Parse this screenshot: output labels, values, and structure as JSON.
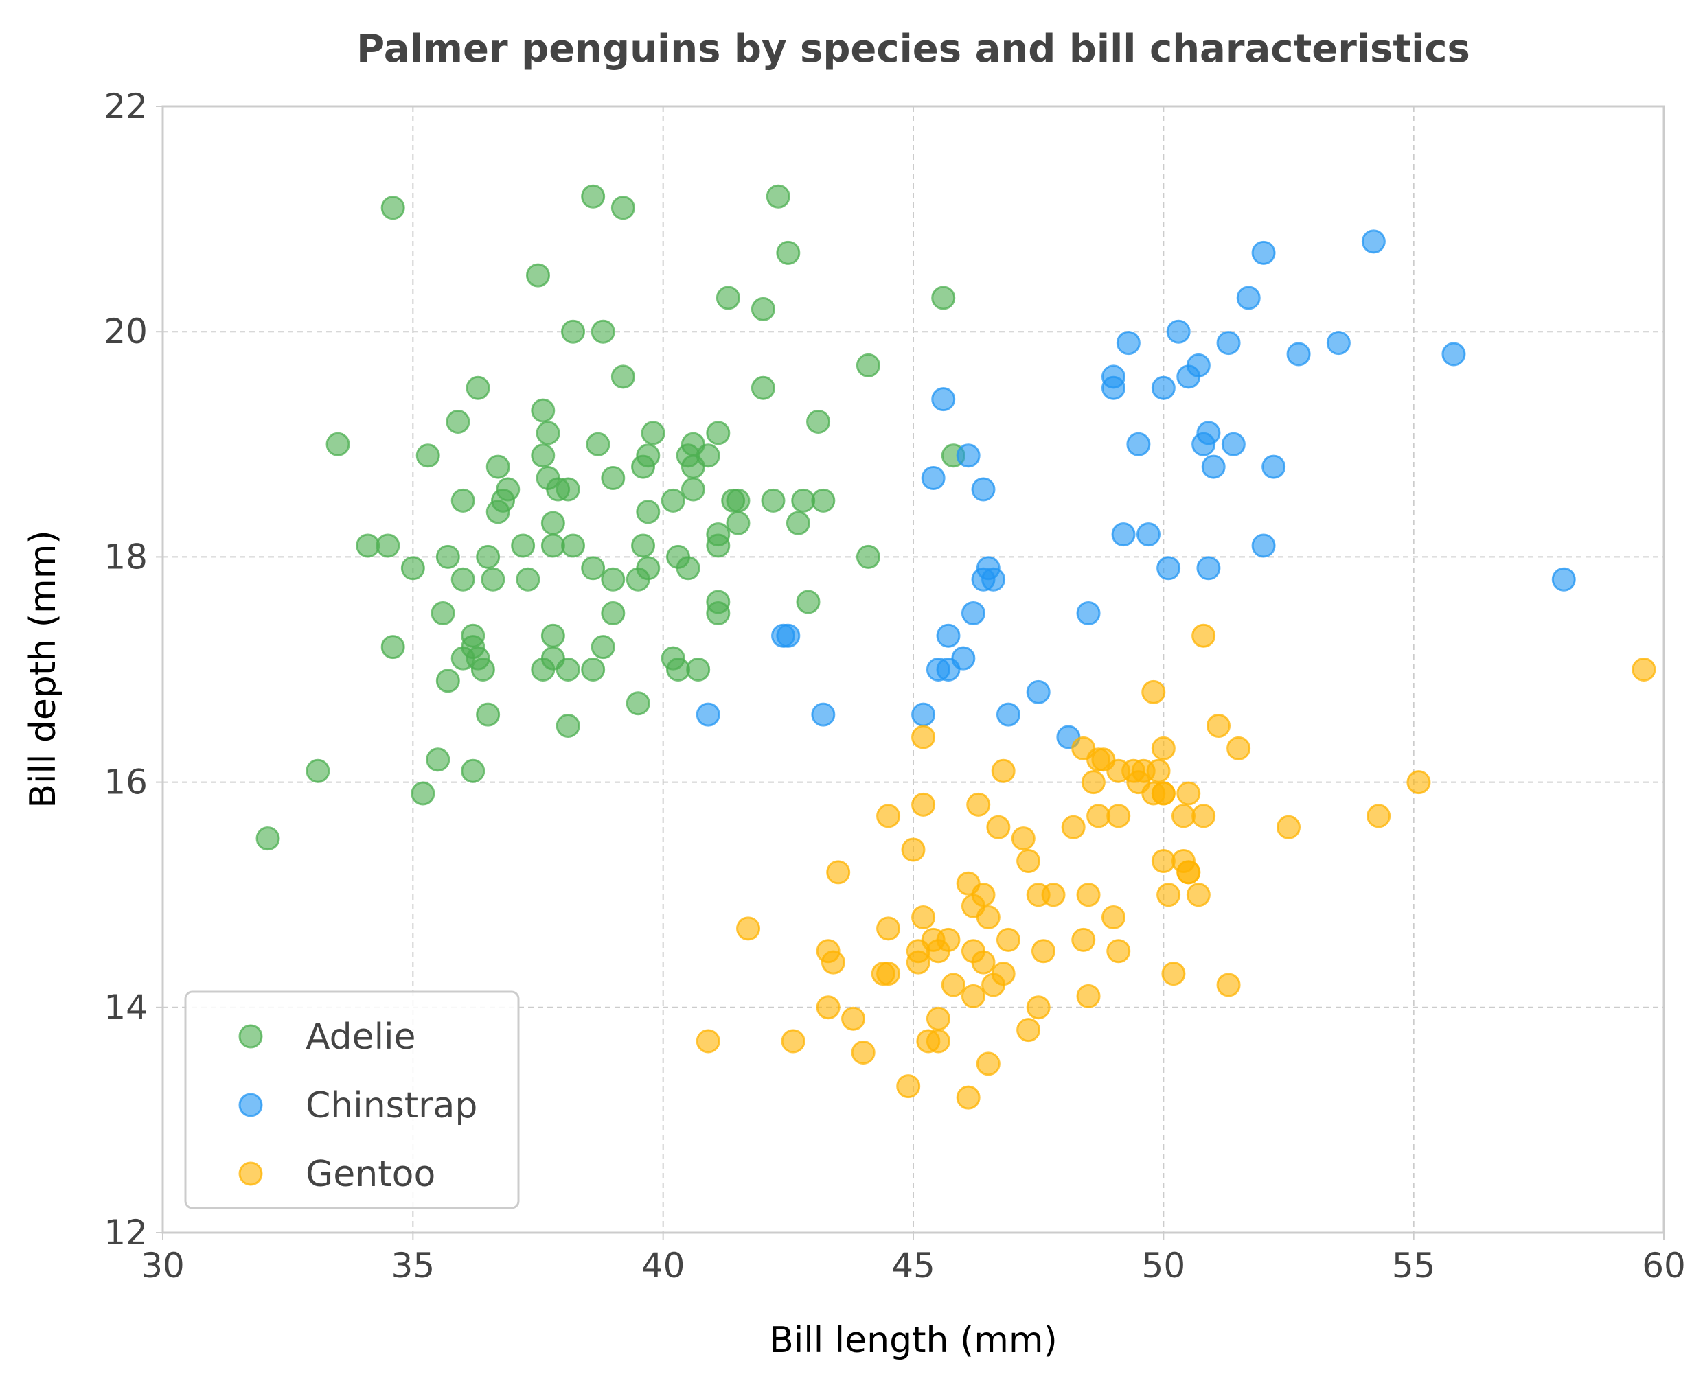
{
  "chart_data": {
    "type": "scatter",
    "title": "Palmer penguins by species and bill characteristics",
    "xlabel": "Bill length (mm)",
    "ylabel": "Bill depth (mm)",
    "xlim": [
      30,
      60
    ],
    "ylim": [
      12,
      22
    ],
    "xticks": [
      "30",
      "35",
      "40",
      "45",
      "50",
      "55",
      "60"
    ],
    "yticks": [
      "12",
      "14",
      "16",
      "18",
      "20",
      "22"
    ],
    "grid": true,
    "legend_position": "lower-left",
    "series": [
      {
        "name": "Adelie",
        "color": "#4CAF50",
        "x": [
          32.1,
          33.1,
          33.5,
          34.1,
          34.5,
          34.6,
          34.6,
          35.0,
          35.2,
          35.3,
          35.5,
          35.6,
          35.7,
          35.7,
          35.9,
          36.0,
          36.0,
          36.0,
          36.2,
          36.2,
          36.2,
          36.3,
          36.3,
          36.4,
          36.5,
          36.5,
          36.6,
          36.7,
          36.7,
          36.8,
          36.9,
          37.2,
          37.3,
          37.5,
          37.6,
          37.6,
          37.6,
          37.7,
          37.7,
          37.8,
          37.8,
          37.8,
          37.8,
          37.9,
          38.1,
          38.1,
          38.1,
          38.2,
          38.2,
          38.6,
          38.6,
          38.6,
          38.7,
          38.8,
          38.8,
          39.0,
          39.0,
          39.0,
          39.2,
          39.2,
          39.5,
          39.5,
          39.6,
          39.6,
          39.7,
          39.7,
          39.7,
          39.8,
          40.2,
          40.2,
          40.3,
          40.3,
          40.5,
          40.5,
          40.6,
          40.6,
          40.6,
          40.7,
          40.9,
          41.1,
          41.1,
          41.1,
          41.1,
          41.1,
          41.3,
          41.4,
          41.5,
          41.5,
          42.0,
          42.0,
          42.2,
          42.3,
          42.5,
          42.7,
          42.8,
          42.9,
          43.1,
          43.2,
          44.1,
          44.1,
          45.6,
          45.8
        ],
        "y": [
          15.5,
          16.1,
          19.0,
          18.1,
          18.1,
          21.1,
          17.2,
          17.9,
          15.9,
          18.9,
          16.2,
          17.5,
          16.9,
          18.0,
          19.2,
          18.5,
          17.1,
          17.8,
          17.3,
          17.2,
          16.1,
          19.5,
          17.1,
          17.0,
          16.6,
          18.0,
          17.8,
          18.8,
          18.4,
          18.5,
          18.6,
          18.1,
          17.8,
          20.5,
          18.9,
          19.3,
          17.0,
          19.1,
          18.7,
          18.3,
          18.1,
          17.3,
          17.1,
          18.6,
          18.6,
          17.0,
          16.5,
          20.0,
          18.1,
          21.2,
          17.9,
          17.0,
          19.0,
          20.0,
          17.2,
          17.8,
          17.5,
          18.7,
          21.1,
          19.6,
          16.7,
          17.8,
          18.1,
          18.8,
          18.9,
          17.9,
          18.4,
          19.1,
          18.5,
          17.1,
          18.0,
          17.0,
          17.9,
          18.9,
          18.8,
          19.0,
          18.6,
          17.0,
          18.9,
          17.5,
          17.6,
          18.1,
          18.2,
          19.1,
          20.3,
          18.5,
          18.3,
          18.5,
          19.5,
          20.2,
          18.5,
          21.2,
          20.7,
          18.3,
          18.5,
          17.6,
          19.2,
          18.5,
          18.0,
          19.7,
          20.3,
          18.9
        ]
      },
      {
        "name": "Chinstrap",
        "color": "#2196F3",
        "x": [
          40.9,
          42.4,
          42.5,
          43.2,
          45.2,
          45.4,
          45.5,
          45.6,
          45.7,
          45.7,
          46.0,
          46.1,
          46.2,
          46.4,
          46.4,
          46.5,
          46.6,
          46.9,
          47.5,
          48.1,
          48.5,
          49.0,
          49.0,
          49.2,
          49.3,
          49.5,
          49.7,
          50.0,
          50.1,
          50.3,
          50.5,
          50.7,
          50.8,
          50.9,
          50.9,
          51.0,
          51.3,
          51.4,
          51.7,
          52.0,
          52.0,
          52.2,
          52.7,
          53.5,
          54.2,
          55.8,
          58.0
        ],
        "y": [
          16.6,
          17.3,
          17.3,
          16.6,
          16.6,
          18.7,
          17.0,
          19.4,
          17.3,
          17.0,
          17.1,
          18.9,
          17.5,
          18.6,
          17.8,
          17.9,
          17.8,
          16.6,
          16.8,
          16.4,
          17.5,
          19.5,
          19.6,
          18.2,
          19.9,
          19.0,
          18.2,
          19.5,
          17.9,
          20.0,
          19.6,
          19.7,
          19.0,
          19.1,
          17.9,
          18.8,
          19.9,
          19.0,
          20.3,
          20.7,
          18.1,
          18.8,
          19.8,
          19.9,
          20.8,
          19.8,
          17.8
        ]
      },
      {
        "name": "Gentoo",
        "color": "#FFB300",
        "x": [
          40.9,
          41.7,
          42.6,
          43.3,
          43.3,
          43.4,
          43.5,
          43.8,
          44.0,
          44.4,
          44.5,
          44.5,
          44.5,
          44.9,
          45.0,
          45.1,
          45.1,
          45.2,
          45.2,
          45.2,
          45.3,
          45.4,
          45.5,
          45.5,
          45.5,
          45.7,
          45.8,
          46.1,
          46.1,
          46.2,
          46.2,
          46.2,
          46.3,
          46.4,
          46.4,
          46.5,
          46.5,
          46.6,
          46.7,
          46.8,
          46.8,
          46.9,
          47.2,
          47.3,
          47.3,
          47.5,
          47.5,
          47.6,
          47.8,
          48.2,
          48.4,
          48.4,
          48.5,
          48.5,
          48.6,
          48.7,
          48.7,
          48.8,
          49.0,
          49.1,
          49.1,
          49.1,
          49.4,
          49.5,
          49.6,
          49.8,
          49.8,
          49.9,
          50.0,
          50.0,
          50.0,
          50.0,
          50.1,
          50.2,
          50.4,
          50.4,
          50.5,
          50.5,
          50.5,
          50.7,
          50.8,
          50.8,
          51.1,
          51.3,
          51.5,
          52.5,
          54.3,
          55.1,
          59.6
        ],
        "y": [
          13.7,
          14.7,
          13.7,
          14.0,
          14.5,
          14.4,
          15.2,
          13.9,
          13.6,
          14.3,
          14.7,
          15.7,
          14.3,
          13.3,
          15.4,
          14.4,
          14.5,
          14.8,
          15.8,
          16.4,
          13.7,
          14.6,
          13.9,
          14.5,
          13.7,
          14.6,
          14.2,
          13.2,
          15.1,
          14.5,
          14.1,
          14.9,
          15.8,
          14.4,
          15.0,
          14.8,
          13.5,
          14.2,
          15.6,
          14.3,
          16.1,
          14.6,
          15.5,
          13.8,
          15.3,
          15.0,
          14.0,
          14.5,
          15.0,
          15.6,
          16.3,
          14.6,
          15.0,
          14.1,
          16.0,
          15.7,
          16.2,
          16.2,
          14.8,
          16.1,
          14.5,
          15.7,
          16.1,
          16.0,
          16.1,
          15.9,
          16.8,
          16.1,
          15.3,
          16.3,
          15.9,
          15.9,
          15.0,
          14.3,
          15.3,
          15.7,
          15.9,
          15.2,
          15.2,
          15.0,
          15.7,
          17.3,
          16.5,
          14.2,
          16.3,
          15.6,
          15.7,
          16.0,
          17.0
        ]
      }
    ]
  }
}
